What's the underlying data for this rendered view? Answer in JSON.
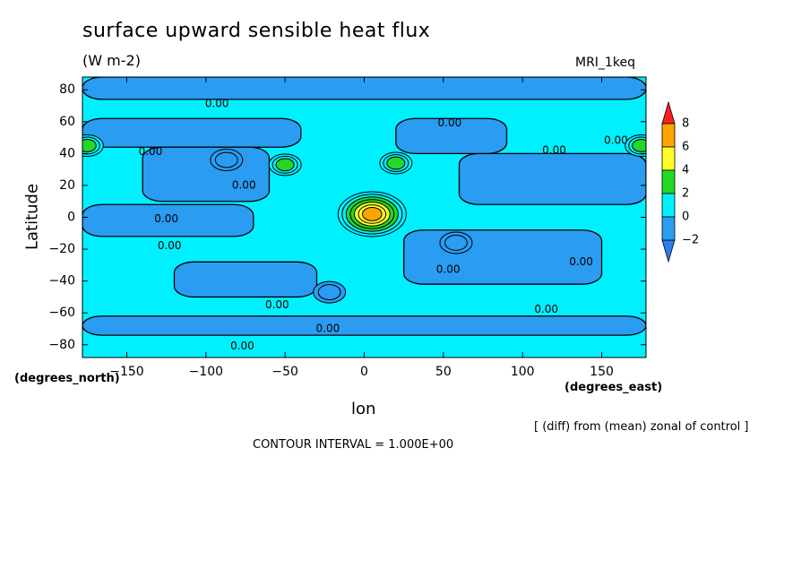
{
  "chart_data": {
    "type": "contour",
    "title": "surface upward sensible heat flux",
    "units": "(W m-2)",
    "model_label": "MRI_1keq",
    "xlabel": "lon",
    "ylabel": "Latitude",
    "x_unit_label": "(degrees_east)",
    "y_unit_label": "(degrees_north)",
    "xlim": [
      -178,
      178
    ],
    "ylim": [
      -88,
      88
    ],
    "x_ticks": [
      -150,
      -100,
      -50,
      0,
      50,
      100,
      150
    ],
    "x_tick_labels": [
      "−150",
      "−100",
      "−50",
      "0",
      "50",
      "100",
      "150"
    ],
    "y_ticks": [
      80,
      60,
      40,
      20,
      0,
      -20,
      -40,
      -60,
      -80
    ],
    "y_tick_labels": [
      "80",
      "60",
      "40",
      "20",
      "0",
      "−20",
      "−40",
      "−60",
      "−80"
    ],
    "colorbar": {
      "levels": [
        -2,
        0,
        2,
        4,
        6,
        8
      ],
      "labels": [
        "−2",
        "0",
        "2",
        "4",
        "6",
        "8"
      ],
      "colors": [
        "#2f7bf0",
        "#2a9cf2",
        "#00f0ff",
        "#25d827",
        "#ffff26",
        "#ffa500",
        "#ff2020"
      ]
    },
    "contour_labels": [
      {
        "text": "0.00",
        "lon": -93,
        "lat": 71
      },
      {
        "text": "0.00",
        "lon": -135,
        "lat": 41
      },
      {
        "text": "0.00",
        "lon": -76,
        "lat": 20
      },
      {
        "text": "0.00",
        "lon": -125,
        "lat": -1
      },
      {
        "text": "0.00",
        "lon": -123,
        "lat": -18
      },
      {
        "text": "0.00",
        "lon": 54,
        "lat": 59
      },
      {
        "text": "0.00",
        "lon": 120,
        "lat": 42
      },
      {
        "text": "0.00",
        "lon": 159,
        "lat": 48
      },
      {
        "text": "0.00",
        "lon": 53,
        "lat": -33
      },
      {
        "text": "0.00",
        "lon": 137,
        "lat": -28
      },
      {
        "text": "0.00",
        "lon": -55,
        "lat": -55
      },
      {
        "text": "0.00",
        "lon": -23,
        "lat": -70
      },
      {
        "text": "0.00",
        "lon": 115,
        "lat": -58
      },
      {
        "text": "0.00",
        "lon": -77,
        "lat": -81
      }
    ],
    "features": [
      {
        "lon": 5,
        "lat": 2,
        "peak": 7,
        "note": "equatorial maximum"
      },
      {
        "lon": -87,
        "lat": 36,
        "peak": -1.5,
        "note": "minimum"
      },
      {
        "lon": -50,
        "lat": 33,
        "peak": 2.5
      },
      {
        "lon": 20,
        "lat": 34,
        "peak": 2.5
      },
      {
        "lon": 58,
        "lat": -16,
        "peak": -1.5
      },
      {
        "lon": -22,
        "lat": -47,
        "peak": -1.5
      },
      {
        "lon": -175,
        "lat": 45,
        "peak": 2.5
      },
      {
        "lon": 175,
        "lat": 45,
        "peak": 2.5
      }
    ]
  },
  "annotations": {
    "diff_note": "[ (diff) from (mean) zonal of control ]",
    "contour_interval": "CONTOUR INTERVAL = 1.000E+00"
  }
}
